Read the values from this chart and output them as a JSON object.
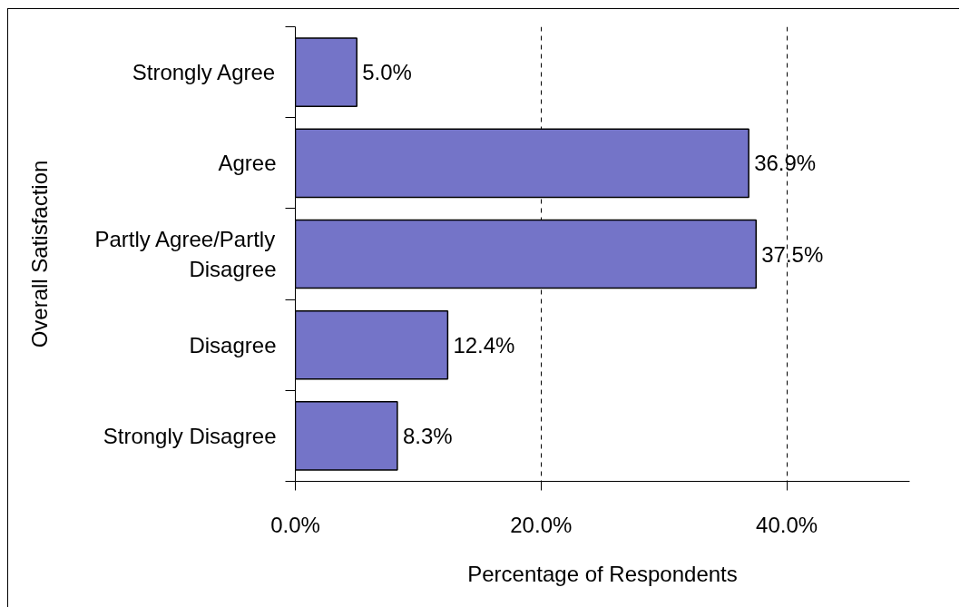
{
  "chart_data": {
    "type": "bar",
    "orientation": "horizontal",
    "categories": [
      "Strongly Agree",
      "Agree",
      "Partly Agree/Partly Disagree",
      "Disagree",
      "Strongly Disagree"
    ],
    "values": [
      5.0,
      36.9,
      37.5,
      12.4,
      8.3
    ],
    "value_labels": [
      "5.0%",
      "36.9%",
      "37.5%",
      "12.4%",
      "8.3%"
    ],
    "color": "#7474c8",
    "xlim": [
      0,
      50
    ],
    "xticks": [
      {
        "value": 0,
        "label": "0.0%"
      },
      {
        "value": 20,
        "label": "20.0%"
      },
      {
        "value": 40,
        "label": "40.0%"
      }
    ],
    "xlabel": "Percentage of Respondents",
    "ylabel": "Overall Satisfaction",
    "grid": "x"
  }
}
